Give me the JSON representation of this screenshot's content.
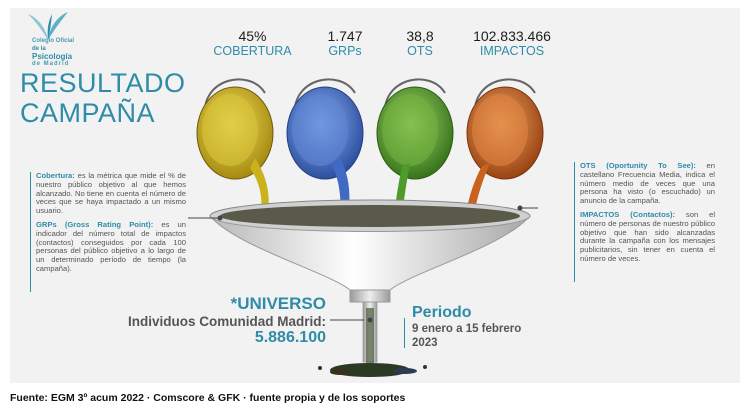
{
  "logo": {
    "line1": "Colegio Oficial",
    "line2_prefix": "de la ",
    "line2_bold": "Psicología",
    "line3": "de Madrid"
  },
  "metrics": [
    {
      "value": "45%",
      "label": "COBERTURA"
    },
    {
      "value": "1.747",
      "label": "GRPs"
    },
    {
      "value": "38,8",
      "label": "OTS"
    },
    {
      "value": "102.833.466",
      "label": "IMPACTOS"
    }
  ],
  "title": {
    "line1": "RESULTADO",
    "line2": "CAMPAÑA"
  },
  "left_desc": {
    "cobertura_term": "Cobertura:",
    "cobertura_text": " es la métrica que mide el % de nuestro público objetivo al que hemos alcanzado. No tiene en cuenta el número de veces que se haya impactado a un mismo usuario.",
    "grps_term": "GRPs (Gross Rating Point):",
    "grps_text": " es un indicador del número total de impactos (contactos) conseguidos por cada 100 personas del público objetivo a lo largo de un determinado período de tiempo (la campaña)."
  },
  "right_desc": {
    "ots_term": "OTS (Oportunity To See):",
    "ots_text": " en castellano Frecuencia Media, indica el número medio de veces que una persona ha visto (o escuchado) un anuncio de la campaña.",
    "impactos_term": "IMPACTOS (Contactos):",
    "impactos_text": " son el número de personas de nuestro público objetivo que han sido alcanzadas durante la campaña con los mensajes publicitarios, sin tener en cuenta el número de veces."
  },
  "universo": {
    "title": "*UNIVERSO",
    "subtitle": "Individuos Comunidad Madrid:",
    "number": "5.886.100"
  },
  "periodo": {
    "title": "Periodo",
    "line1": "9 enero a 15 febrero",
    "line2": "2023"
  },
  "footer": "Fuente: EGM 3º acum 2022 · Comscore & GFK · fuente propia y de los soportes",
  "colors": {
    "accent": "#2f8ca8",
    "paint_yellow": "#c9b21e",
    "paint_blue": "#3f6bc4",
    "paint_green": "#4e9a2c",
    "paint_orange": "#c9621e"
  }
}
